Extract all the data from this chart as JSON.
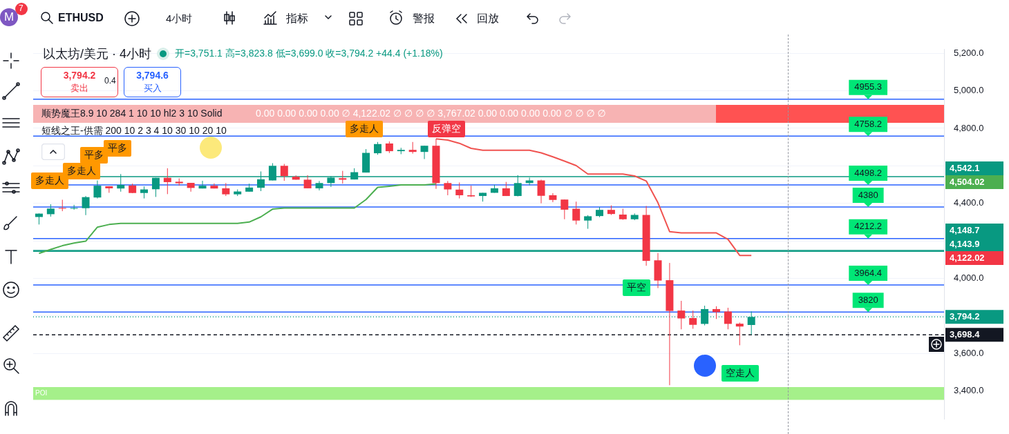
{
  "chart_data": {
    "type": "candlestick",
    "title": "以太坊/美元 · 4小时",
    "subtitle": "开=3,751.1 高=3,823.8 低=3,699.0 收=3,794.2 +44.4 (+1.18%)",
    "categories": [
      null,
      null,
      null,
      null,
      null,
      null,
      null,
      null,
      null,
      null,
      null,
      null,
      null,
      null,
      null,
      null,
      null,
      null,
      null,
      null,
      null,
      null,
      null,
      null,
      null,
      null,
      null,
      null,
      null,
      null,
      null,
      null,
      null,
      null,
      null,
      null,
      null,
      null,
      null,
      null,
      null,
      null,
      null,
      null,
      null,
      null,
      null,
      null,
      null,
      null,
      null,
      null,
      null,
      null,
      null,
      null,
      null,
      null,
      null,
      null,
      null,
      null,
      null,
      null,
      null,
      null,
      null,
      null,
      null,
      null,
      null,
      null,
      null,
      null,
      null,
      null,
      null,
      null
    ],
    "ohlc": [
      [
        4327,
        4346,
        4287,
        4345
      ],
      [
        4342,
        4395,
        4329,
        4372
      ],
      [
        4375,
        4419,
        4358,
        4372
      ],
      [
        4372,
        4392,
        4366,
        4375
      ],
      [
        4374,
        4439,
        4337,
        4433
      ],
      [
        4431,
        4522,
        4426,
        4494
      ],
      [
        4491,
        4491,
        4456,
        4480
      ],
      [
        4479,
        4556,
        4462,
        4498
      ],
      [
        4495,
        4505,
        4454,
        4455
      ],
      [
        4455,
        4490,
        4426,
        4474
      ],
      [
        4475,
        4536,
        4434,
        4536
      ],
      [
        4536,
        4587,
        4449,
        4513
      ],
      [
        4515,
        4533,
        4494,
        4507
      ],
      [
        4509,
        4509,
        4462,
        4482
      ],
      [
        4479,
        4520,
        4479,
        4494
      ],
      [
        4494,
        4506,
        4479,
        4479
      ],
      [
        4480,
        4508,
        4439,
        4448
      ],
      [
        4448,
        4474,
        4439,
        4463
      ],
      [
        4462,
        4505,
        4462,
        4484
      ],
      [
        4483,
        4570,
        4465,
        4528
      ],
      [
        4522,
        4614,
        4522,
        4600
      ],
      [
        4600,
        4610,
        4520,
        4545
      ],
      [
        4542,
        4549,
        4526,
        4526
      ],
      [
        4526,
        4550,
        4480,
        4480
      ],
      [
        4480,
        4519,
        4469,
        4508
      ],
      [
        4508,
        4545,
        4487,
        4537
      ],
      [
        4534,
        4573,
        4505,
        4526
      ],
      [
        4527,
        4587,
        4527,
        4566
      ],
      [
        4564,
        4689,
        4564,
        4669
      ],
      [
        4667,
        4727,
        4659,
        4716
      ],
      [
        4719,
        4730,
        4668,
        4678
      ],
      [
        4678,
        4696,
        4662,
        4685
      ],
      [
        4685,
        4727,
        4665,
        4674
      ],
      [
        4674,
        4707,
        4636,
        4707
      ],
      [
        4707,
        4744,
        4477,
        4508
      ],
      [
        4508,
        4519,
        4443,
        4474
      ],
      [
        4473,
        4511,
        4426,
        4443
      ],
      [
        4443,
        4494,
        4434,
        4437
      ],
      [
        4439,
        4456,
        4409,
        4456
      ],
      [
        4456,
        4499,
        4456,
        4480
      ],
      [
        4480,
        4514,
        4439,
        4439
      ],
      [
        4439,
        4550,
        4437,
        4508
      ],
      [
        4508,
        4537,
        4496,
        4522
      ],
      [
        4522,
        4526,
        4400,
        4440
      ],
      [
        4443,
        4454,
        4406,
        4418
      ],
      [
        4420,
        4420,
        4315,
        4366
      ],
      [
        4371,
        4409,
        4287,
        4308
      ],
      [
        4308,
        4337,
        4264,
        4331
      ],
      [
        4332,
        4380,
        4326,
        4365
      ],
      [
        4365,
        4389,
        4338,
        4343
      ],
      [
        4340,
        4371,
        4312,
        4315
      ],
      [
        4315,
        4346,
        4310,
        4338
      ],
      [
        4338,
        4386,
        4067,
        4093
      ],
      [
        4096,
        4135,
        3948,
        3988
      ],
      [
        3990,
        4082,
        3430,
        3826
      ],
      [
        3828,
        3880,
        3728,
        3786
      ],
      [
        3788,
        3828,
        3731,
        3752
      ],
      [
        3757,
        3854,
        3749,
        3836
      ],
      [
        3836,
        3851,
        3783,
        3820
      ],
      [
        3823,
        3843,
        3728,
        3757
      ],
      [
        3758,
        3764,
        3643,
        3743
      ],
      [
        3751.1,
        3823.8,
        3699.0,
        3794.2
      ],
      null,
      null,
      null,
      null,
      null,
      null,
      null,
      null,
      null,
      null,
      null,
      null,
      null,
      null,
      null,
      null
    ],
    "colors": [
      "#089981",
      "#089981",
      "#f23645",
      "#089981",
      "#089981",
      "#089981",
      "#f23645",
      "#089981",
      "#f23645",
      "#089981",
      "#089981",
      "#f23645",
      "#f23645",
      "#f23645",
      "#089981",
      "#f23645",
      "#f23645",
      "#089981",
      "#089981",
      "#089981",
      "#089981",
      "#f23645",
      "#f23645",
      "#f23645",
      "#089981",
      "#089981",
      "#f23645",
      "#089981",
      "#089981",
      "#089981",
      "#f23645",
      "#089981",
      "#f23645",
      "#089981",
      "#f23645",
      "#f23645",
      "#f23645",
      "#f23645",
      "#089981",
      "#089981",
      "#f23645",
      "#089981",
      "#089981",
      "#f23645",
      "#f23645",
      "#f23645",
      "#f23645",
      "#089981",
      "#089981",
      "#f23645",
      "#f23645",
      "#089981",
      "#f23645",
      "#f23645",
      "#f23645",
      "#f23645",
      "#f23645",
      "#089981",
      "#f23645",
      "#f23645",
      "#f23645",
      "#089981",
      null,
      null,
      null,
      null,
      null,
      null,
      null,
      null,
      null,
      null,
      null,
      null,
      null,
      null,
      null,
      null
    ],
    "series": [
      {
        "type": "line",
        "color": "#4caf50",
        "values": [
          4133,
          4154,
          4174,
          4188,
          4198,
          4273,
          4287,
          4293,
          4293,
          4293,
          4293,
          4293,
          4293,
          4293,
          4293,
          4293,
          4293,
          4293,
          4300,
          4328,
          4369,
          4375,
          4375,
          4375,
          4375,
          4375,
          4375,
          4375,
          4420,
          4485,
          4491,
          4498,
          4498,
          4498,
          4504.02,
          null,
          null,
          null,
          null,
          null,
          null,
          null,
          null,
          null,
          null,
          null,
          null,
          null,
          null,
          null,
          null,
          null,
          null,
          null,
          null,
          null,
          null,
          null,
          null,
          null,
          null,
          null,
          null,
          null,
          null,
          null,
          null,
          null,
          null,
          null,
          null,
          null,
          null,
          null,
          null,
          null,
          null,
          null
        ]
      },
      {
        "type": "line",
        "color": "#f05350",
        "values": [
          null,
          null,
          null,
          null,
          null,
          null,
          null,
          null,
          null,
          null,
          null,
          null,
          null,
          null,
          null,
          null,
          null,
          null,
          null,
          null,
          null,
          null,
          null,
          null,
          null,
          null,
          null,
          null,
          null,
          null,
          null,
          null,
          null,
          null,
          4744,
          4737,
          4720,
          4693,
          4683,
          4683,
          4683,
          4683,
          4683,
          4669,
          4648,
          4625,
          4601,
          4556,
          4556,
          4556,
          4556,
          4546,
          4519,
          4403,
          4249,
          4242,
          4242,
          4242,
          4242,
          4208,
          4122.02,
          4122.02,
          null,
          null,
          null,
          null,
          null,
          null,
          null,
          null,
          null,
          null,
          null,
          null,
          null,
          null,
          null,
          null
        ]
      }
    ],
    "ylim": [
      3250,
      5220
    ],
    "yticks": [
      {
        "value": 3400,
        "label": "3,400.0"
      },
      {
        "value": 3600,
        "label": "3,600.0"
      },
      {
        "value": 3800,
        "label": null
      },
      {
        "value": 4000,
        "label": "4,000.0"
      },
      {
        "value": 4200,
        "label": null
      },
      {
        "value": 4400,
        "label": "4,400.0"
      },
      {
        "value": 4600,
        "label": null
      },
      {
        "value": 4800,
        "label": "4,800.0"
      },
      {
        "value": 5000,
        "label": "5,000.0"
      },
      {
        "value": 5200,
        "label": "5,200.0"
      }
    ],
    "tick_labels": "y",
    "grid": "y",
    "legend": false,
    "marker": "none",
    "line_style": "solid",
    "bands": [
      {
        "axis": "y",
        "from": 3352,
        "to": 3420,
        "label": "POI",
        "color": "#a5f08a"
      }
    ],
    "ref_lines": [
      {
        "axis": "y",
        "value": 4955.3,
        "color": "#2962ff"
      },
      {
        "axis": "y",
        "value": 4758.2,
        "color": "#2962ff"
      },
      {
        "axis": "y",
        "value": 4498.2,
        "color": "#2962ff"
      },
      {
        "axis": "y",
        "value": 4380,
        "color": "#2962ff"
      },
      {
        "axis": "y",
        "value": 4212.2,
        "color": "#2962ff"
      },
      {
        "axis": "y",
        "value": 3964.4,
        "color": "#2962ff"
      },
      {
        "axis": "y",
        "value": 3820,
        "color": "#2962ff"
      },
      {
        "axis": "y",
        "value": 4542.1,
        "label": "4,542.1",
        "color": "#089981"
      },
      {
        "axis": "y",
        "value": 4148.7,
        "label": "4,148.7",
        "color": "#089981"
      },
      {
        "axis": "y",
        "value": 4143.9,
        "label": "4,143.9",
        "color": "#089981"
      },
      {
        "axis": "y",
        "value": 3794.2,
        "label": "3,794.2",
        "color": "#089981",
        "line_style": "dotted"
      },
      {
        "axis": "y",
        "value": 3698.4,
        "label": "3,698.4",
        "color": "#131722",
        "line_style": "dashed"
      }
    ],
    "annotations": [
      "M",
      "7",
      "ETHUSD",
      "4小时",
      "指标",
      "警报",
      "回放",
      "3,794.2",
      "卖出",
      "0.4",
      "3,794.6",
      "买入",
      "顺势魔王8.9 10 284 1 10 10 hl2 3 10 Solid",
      "0.00 0.00 0.00 0.00 ∅ 4,122.02 ∅ ∅ ∅ ∅ 3,767.02 0.00 0.00 0.00 0.00 ∅ ∅ ∅ ∅",
      "短线之王-供需 200 10 2 3 4 10 30 10 20 10",
      "多走人",
      "多走人",
      "平多",
      "平多",
      "多走人",
      "反弹空",
      "平空",
      "空走人",
      "4,504.02",
      "4,122.02",
      {
        "text": "4955.3",
        "y": 4955.3
      },
      {
        "text": "4758.2",
        "y": 4758.2
      },
      {
        "text": "4498.2",
        "y": 4498.2
      },
      {
        "text": "4380",
        "y": 4380
      },
      {
        "text": "4212.2",
        "y": 4212.2
      },
      {
        "text": "3964.4",
        "y": 3964.4
      },
      {
        "text": "3820",
        "y": 3820
      }
    ]
  }
}
